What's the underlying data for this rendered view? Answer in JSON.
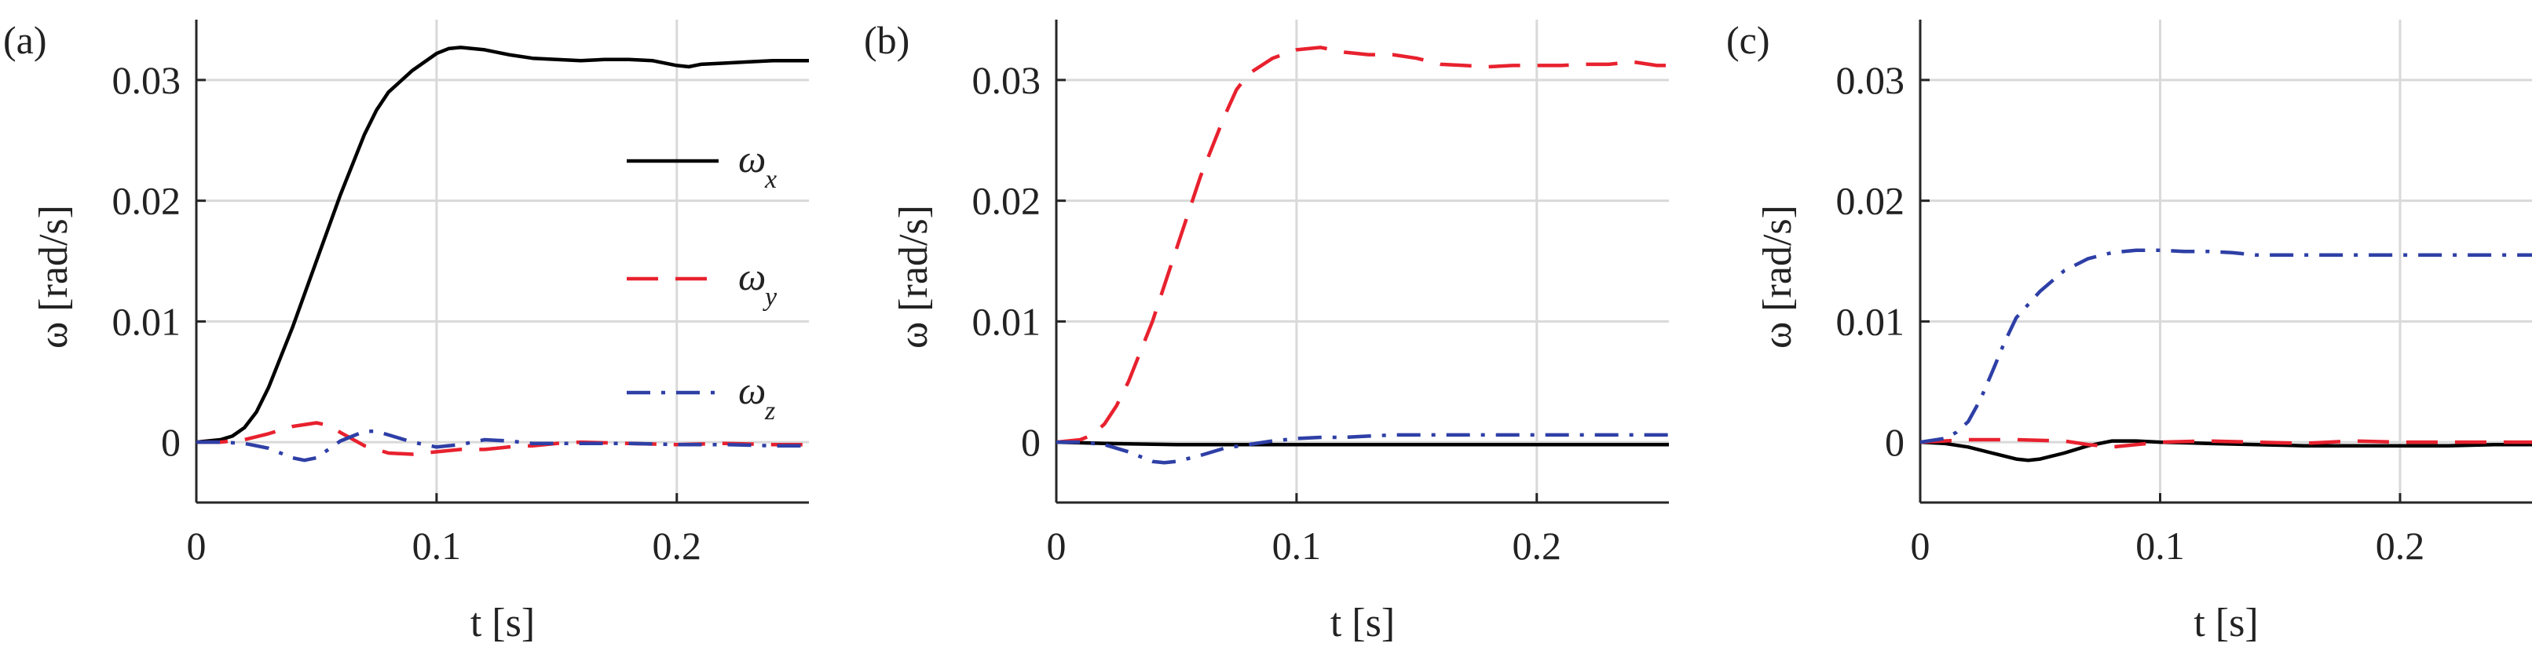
{
  "chart_data": [
    {
      "type": "line",
      "panel_label": "(a)",
      "xlabel": "t [s]",
      "ylabel": "ω [rad/s]",
      "xlim": [
        0,
        0.255
      ],
      "ylim": [
        -0.005,
        0.035
      ],
      "xticks": [
        0,
        0.1,
        0.2
      ],
      "xtick_labels": [
        "0",
        "0.1",
        "0.2"
      ],
      "yticks": [
        0,
        0.01,
        0.02,
        0.03
      ],
      "ytick_labels": [
        "0",
        "0.01",
        "0.02",
        "0.03"
      ],
      "grid": true,
      "legend": {
        "position": "right",
        "entries": [
          {
            "symbol": "ω",
            "sub": "x"
          },
          {
            "symbol": "ω",
            "sub": "y"
          },
          {
            "symbol": "ω",
            "sub": "z"
          }
        ]
      },
      "series": [
        {
          "name": "ωx",
          "color": "#000000",
          "style": "solid",
          "x": [
            0,
            0.01,
            0.015,
            0.02,
            0.025,
            0.03,
            0.04,
            0.05,
            0.06,
            0.07,
            0.075,
            0.08,
            0.09,
            0.1,
            0.105,
            0.11,
            0.12,
            0.13,
            0.14,
            0.15,
            0.16,
            0.17,
            0.18,
            0.19,
            0.2,
            0.205,
            0.21,
            0.22,
            0.23,
            0.24,
            0.25,
            0.255
          ],
          "y": [
            0,
            0.0002,
            0.0005,
            0.0012,
            0.0025,
            0.0045,
            0.0095,
            0.015,
            0.0205,
            0.0255,
            0.0275,
            0.029,
            0.0308,
            0.0322,
            0.0326,
            0.0327,
            0.0325,
            0.0321,
            0.0318,
            0.0317,
            0.0316,
            0.0317,
            0.0317,
            0.0316,
            0.0312,
            0.0311,
            0.0313,
            0.0314,
            0.0315,
            0.0316,
            0.0316,
            0.0316
          ]
        },
        {
          "name": "ωy",
          "color": "#e8212e",
          "style": "dashed",
          "x": [
            0,
            0.01,
            0.02,
            0.03,
            0.04,
            0.05,
            0.055,
            0.06,
            0.07,
            0.08,
            0.09,
            0.1,
            0.11,
            0.12,
            0.13,
            0.14,
            0.15,
            0.16,
            0.18,
            0.2,
            0.22,
            0.24,
            0.255
          ],
          "y": [
            0,
            0,
            0.0002,
            0.0007,
            0.0013,
            0.0016,
            0.0014,
            0.0008,
            -0.0003,
            -0.0009,
            -0.001,
            -0.0008,
            -0.0006,
            -0.0006,
            -0.0004,
            -0.0003,
            -0.0001,
            0,
            -0.0001,
            -0.0002,
            -0.0001,
            -0.0002,
            -0.0002
          ]
        },
        {
          "name": "ωz",
          "color": "#2e3fa6",
          "style": "dashdot",
          "x": [
            0,
            0.01,
            0.02,
            0.03,
            0.04,
            0.045,
            0.05,
            0.06,
            0.07,
            0.075,
            0.08,
            0.09,
            0.1,
            0.11,
            0.12,
            0.13,
            0.14,
            0.16,
            0.18,
            0.2,
            0.22,
            0.24,
            0.255
          ],
          "y": [
            0,
            0,
            -0.0001,
            -0.0005,
            -0.0013,
            -0.0015,
            -0.0013,
            0.0001,
            0.0009,
            0.0009,
            0.0006,
            0,
            -0.0004,
            -0.0002,
            0.0002,
            0.0001,
            -0.0001,
            -0.0001,
            -0.0001,
            -0.0002,
            -0.0002,
            -0.0003,
            -0.0003
          ]
        }
      ]
    },
    {
      "type": "line",
      "panel_label": "(b)",
      "xlabel": "t [s]",
      "ylabel": "ω [rad/s]",
      "xlim": [
        0,
        0.255
      ],
      "ylim": [
        -0.005,
        0.035
      ],
      "xticks": [
        0,
        0.1,
        0.2
      ],
      "xtick_labels": [
        "0",
        "0.1",
        "0.2"
      ],
      "yticks": [
        0,
        0.01,
        0.02,
        0.03
      ],
      "ytick_labels": [
        "0",
        "0.01",
        "0.02",
        "0.03"
      ],
      "grid": true,
      "series": [
        {
          "name": "ωx",
          "color": "#000000",
          "style": "solid",
          "x": [
            0,
            0.02,
            0.05,
            0.1,
            0.15,
            0.2,
            0.255
          ],
          "y": [
            0,
            -0.0001,
            -0.0002,
            -0.0002,
            -0.0002,
            -0.0002,
            -0.0002
          ]
        },
        {
          "name": "ωy",
          "color": "#e8212e",
          "style": "dashed",
          "x": [
            0,
            0.01,
            0.015,
            0.02,
            0.025,
            0.03,
            0.04,
            0.05,
            0.06,
            0.07,
            0.075,
            0.08,
            0.09,
            0.1,
            0.11,
            0.12,
            0.13,
            0.14,
            0.15,
            0.16,
            0.17,
            0.18,
            0.19,
            0.2,
            0.21,
            0.22,
            0.23,
            0.24,
            0.25,
            0.255
          ],
          "y": [
            0,
            0.0002,
            0.0006,
            0.0015,
            0.003,
            0.005,
            0.01,
            0.016,
            0.022,
            0.027,
            0.0292,
            0.0305,
            0.0318,
            0.0325,
            0.0327,
            0.0323,
            0.0321,
            0.0321,
            0.0318,
            0.0313,
            0.0312,
            0.0311,
            0.0312,
            0.0312,
            0.0312,
            0.0313,
            0.0313,
            0.0315,
            0.0312,
            0.0312
          ]
        },
        {
          "name": "ωz",
          "color": "#2e3fa6",
          "style": "dashdot",
          "x": [
            0,
            0.01,
            0.02,
            0.03,
            0.04,
            0.045,
            0.05,
            0.06,
            0.07,
            0.08,
            0.09,
            0.1,
            0.11,
            0.12,
            0.13,
            0.14,
            0.15,
            0.16,
            0.18,
            0.2,
            0.22,
            0.24,
            0.255
          ],
          "y": [
            0,
            0,
            -0.0002,
            -0.0008,
            -0.0016,
            -0.0017,
            -0.0016,
            -0.0011,
            -0.0005,
            -0.0002,
            0.0001,
            0.0003,
            0.0004,
            0.0004,
            0.0005,
            0.0006,
            0.0006,
            0.0006,
            0.0006,
            0.0006,
            0.0006,
            0.0006,
            0.0006
          ]
        }
      ]
    },
    {
      "type": "line",
      "panel_label": "(c)",
      "xlabel": "t [s]",
      "ylabel": "ω [rad/s]",
      "xlim": [
        0,
        0.255
      ],
      "ylim": [
        -0.005,
        0.035
      ],
      "xticks": [
        0,
        0.1,
        0.2
      ],
      "xtick_labels": [
        "0",
        "0.1",
        "0.2"
      ],
      "yticks": [
        0,
        0.01,
        0.02,
        0.03
      ],
      "ytick_labels": [
        "0",
        "0.01",
        "0.02",
        "0.03"
      ],
      "grid": true,
      "series": [
        {
          "name": "ωx",
          "color": "#000000",
          "style": "solid",
          "x": [
            0,
            0.01,
            0.02,
            0.03,
            0.04,
            0.045,
            0.05,
            0.06,
            0.07,
            0.08,
            0.09,
            0.1,
            0.12,
            0.14,
            0.16,
            0.18,
            0.2,
            0.22,
            0.24,
            0.255
          ],
          "y": [
            0,
            -0.0001,
            -0.0004,
            -0.0009,
            -0.0014,
            -0.0015,
            -0.0014,
            -0.0009,
            -0.0003,
            0.0001,
            0.0001,
            0,
            -0.0001,
            -0.0002,
            -0.0003,
            -0.0003,
            -0.0003,
            -0.0003,
            -0.0002,
            -0.0002
          ]
        },
        {
          "name": "ωy",
          "color": "#e8212e",
          "style": "dashed",
          "x": [
            0,
            0.01,
            0.02,
            0.04,
            0.06,
            0.07,
            0.08,
            0.09,
            0.1,
            0.12,
            0.14,
            0.16,
            0.18,
            0.2,
            0.22,
            0.24,
            0.255
          ],
          "y": [
            0,
            0.0001,
            0.0002,
            0.0002,
            0.0001,
            -0.0002,
            -0.0004,
            -0.0002,
            0,
            0.0001,
            0,
            -0.0001,
            0.0001,
            0,
            0,
            0,
            0
          ]
        },
        {
          "name": "ωz",
          "color": "#2e3fa6",
          "style": "dashdot",
          "x": [
            0,
            0.01,
            0.015,
            0.02,
            0.025,
            0.03,
            0.035,
            0.04,
            0.05,
            0.06,
            0.07,
            0.08,
            0.09,
            0.1,
            0.11,
            0.12,
            0.13,
            0.14,
            0.16,
            0.18,
            0.2,
            0.22,
            0.24,
            0.255
          ],
          "y": [
            0,
            0.0003,
            0.0008,
            0.0017,
            0.0035,
            0.0058,
            0.0082,
            0.0103,
            0.0125,
            0.0142,
            0.0152,
            0.0157,
            0.0159,
            0.0159,
            0.0158,
            0.0158,
            0.0157,
            0.0155,
            0.0155,
            0.0155,
            0.0155,
            0.0155,
            0.0155,
            0.0155
          ]
        }
      ]
    }
  ]
}
